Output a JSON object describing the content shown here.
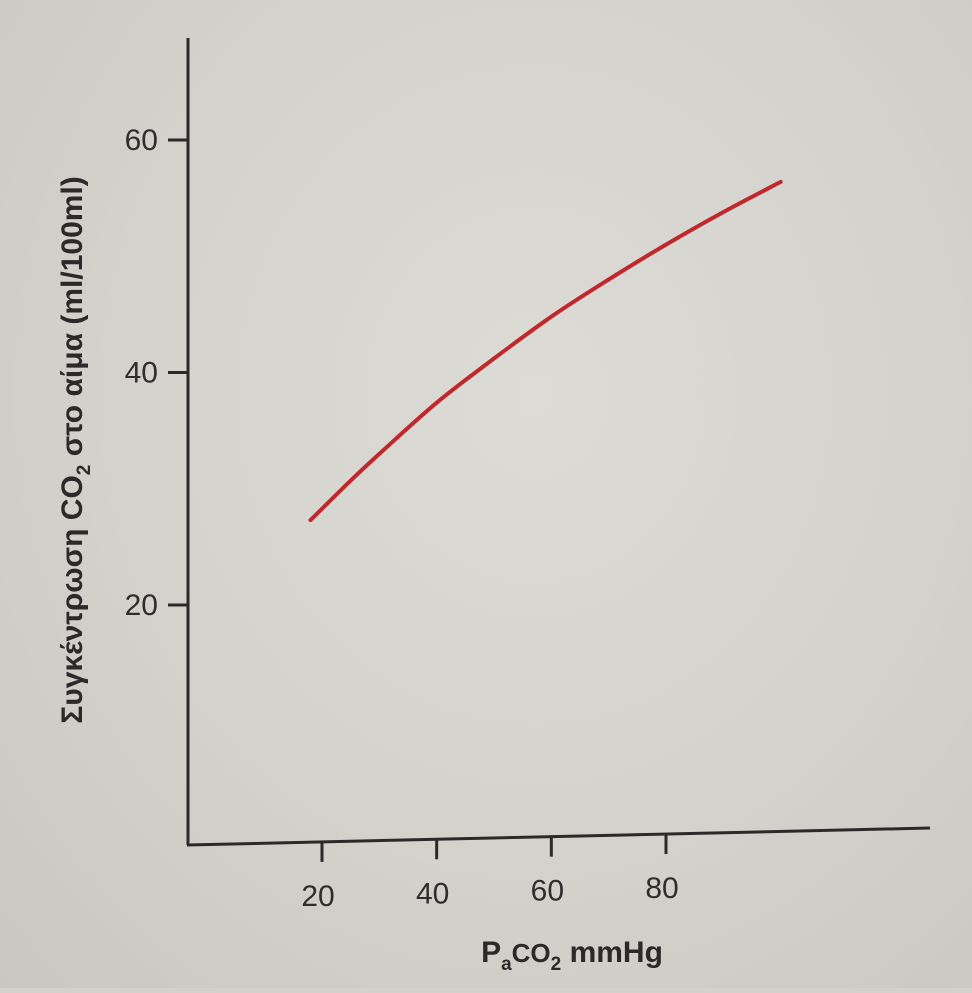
{
  "chart_data": {
    "type": "line",
    "x": [
      18,
      25,
      30,
      40,
      50,
      60,
      70,
      80,
      90,
      100
    ],
    "series": [
      {
        "values": [
          27.3,
          30.7,
          33.0,
          37.4,
          41.2,
          44.8,
          48.0,
          51.0,
          53.8,
          56.4
        ]
      }
    ],
    "series_color": "#c0282d",
    "xlabel": {
      "main": "P",
      "sub1": "a",
      "mid": "CO",
      "sub2": "2",
      "unit": " mmHg"
    },
    "ylabel": {
      "main": "Συγκέντρωση CO",
      "sub": "2",
      "rest": " στο αίμα (ml/100ml)"
    },
    "x_ticks": [
      20,
      40,
      60,
      80
    ],
    "y_ticks": [
      20,
      40,
      60
    ],
    "xlim": [
      -3,
      107
    ],
    "ylim": [
      0,
      67
    ],
    "grid": false
  }
}
